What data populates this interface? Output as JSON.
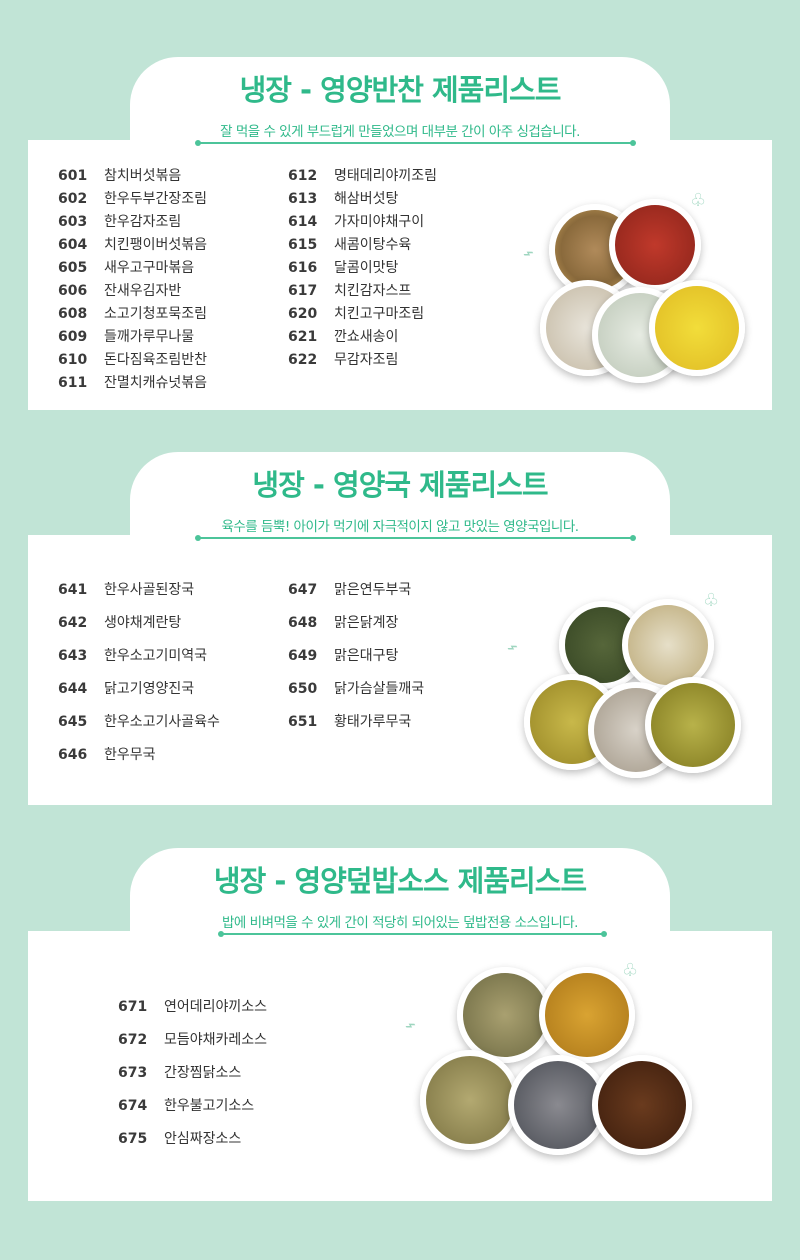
{
  "colors": {
    "background": "#c1e4d6",
    "accent": "#2fb98a"
  },
  "sections": [
    {
      "title": "냉장 - 영양반찬 제품리스트",
      "subtitle": "잘 먹을 수 있게 부드럽게 만들었으며 대부분 간이 아주 싱겁습니다.",
      "items": [
        {
          "code": "601",
          "name": "참치버섯볶음"
        },
        {
          "code": "602",
          "name": "한우두부간장조림"
        },
        {
          "code": "603",
          "name": "한우감자조림"
        },
        {
          "code": "604",
          "name": "치킨팽이버섯볶음"
        },
        {
          "code": "605",
          "name": "새우고구마볶음"
        },
        {
          "code": "606",
          "name": "잔새우김자반"
        },
        {
          "code": "608",
          "name": "소고기청포묵조림"
        },
        {
          "code": "609",
          "name": "들깨가루무나물"
        },
        {
          "code": "610",
          "name": "돈다짐육조림반찬"
        },
        {
          "code": "611",
          "name": "잔멸치캐슈넛볶음"
        },
        {
          "code": "612",
          "name": "명태데리야끼조림"
        },
        {
          "code": "613",
          "name": "해삼버섯탕"
        },
        {
          "code": "614",
          "name": "가자미야채구이"
        },
        {
          "code": "615",
          "name": "새콤이탕수육"
        },
        {
          "code": "616",
          "name": "달콤이맛탕"
        },
        {
          "code": "617",
          "name": "치킨감자스프"
        },
        {
          "code": "620",
          "name": "치킨고구마조림"
        },
        {
          "code": "621",
          "name": "깐쇼새송이"
        },
        {
          "code": "622",
          "name": "무감자조림"
        }
      ]
    },
    {
      "title": "냉장 - 영양국 제품리스트",
      "subtitle": "육수를 듬뿍! 아이가 먹기에 자극적이지 않고 맛있는 영양국입니다.",
      "items": [
        {
          "code": "641",
          "name": "한우사골된장국"
        },
        {
          "code": "642",
          "name": "생야채계란탕"
        },
        {
          "code": "643",
          "name": "한우소고기미역국"
        },
        {
          "code": "644",
          "name": "닭고기영양진국"
        },
        {
          "code": "645",
          "name": "한우소고기사골육수"
        },
        {
          "code": "646",
          "name": "한우무국"
        },
        {
          "code": "647",
          "name": "맑은연두부국"
        },
        {
          "code": "648",
          "name": "맑은닭계장"
        },
        {
          "code": "649",
          "name": "맑은대구탕"
        },
        {
          "code": "650",
          "name": "닭가슴살들깨국"
        },
        {
          "code": "651",
          "name": "황태가루무국"
        }
      ]
    },
    {
      "title": "냉장 - 영양덮밥소스 제품리스트",
      "subtitle": "밥에 비벼먹을 수 있게 간이 적당히 되어있는 덮밥전용 소스입니다.",
      "items": [
        {
          "code": "671",
          "name": "연어데리야끼소스"
        },
        {
          "code": "672",
          "name": "모듬야채카레소스"
        },
        {
          "code": "673",
          "name": "간장찜닭소스"
        },
        {
          "code": "674",
          "name": "한우불고기소스"
        },
        {
          "code": "675",
          "name": "안심짜장소스"
        }
      ]
    }
  ]
}
